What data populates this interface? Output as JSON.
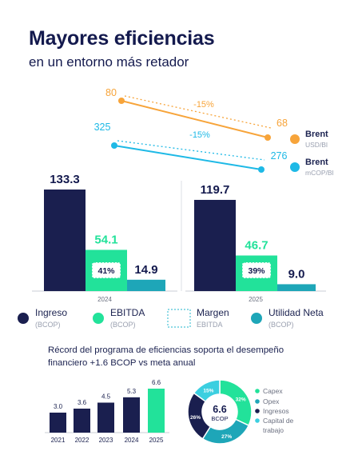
{
  "header": {
    "title": "Mayores eficiencias",
    "subtitle": "en un entorno más retador"
  },
  "colors": {
    "navy": "#1a1f4f",
    "green": "#22e29a",
    "teal": "#1ea6b8",
    "orange": "#f7a43a",
    "cyan": "#1eb9e6"
  },
  "chart_data": [
    {
      "type": "line",
      "series": [
        {
          "name": "Brent",
          "unit": "USD/Bl",
          "x": [
            "2024",
            "2025"
          ],
          "values": [
            80,
            68
          ],
          "change_label": "-15%"
        },
        {
          "name": "Brent",
          "unit": "mCOP/Bl",
          "x": [
            "2024",
            "2025"
          ],
          "values": [
            325,
            276
          ],
          "change_label": "-15%"
        }
      ]
    },
    {
      "type": "bar",
      "categories": [
        "2024",
        "2025"
      ],
      "series": [
        {
          "name": "Ingreso",
          "unit": "(BCOP)",
          "values": [
            133.3,
            119.7
          ]
        },
        {
          "name": "EBITDA",
          "unit": "(BCOP)",
          "values": [
            54.1,
            46.7
          ]
        },
        {
          "name": "Utilidad Neta",
          "unit": "(BCOP)",
          "values": [
            14.9,
            9.0
          ]
        }
      ],
      "value_labels": {
        "Ingreso": [
          "133.3",
          "119.7"
        ],
        "EBITDA": [
          "54.1",
          "46.7"
        ],
        "Utilidad Neta": [
          "14.9",
          "9.0"
        ]
      },
      "margin": {
        "name": "Margen",
        "unit": "EBITDA",
        "values": [
          "41%",
          "39%"
        ]
      }
    },
    {
      "type": "bar",
      "title": "Récord del programa de eficiencias soporta el desempeño financiero +1.6 BCOP vs meta anual",
      "categories": [
        "2021",
        "2022",
        "2023",
        "2024",
        "2025"
      ],
      "values": [
        3.0,
        3.6,
        4.5,
        5.3,
        6.6
      ],
      "value_labels": [
        "3.0",
        "3.6",
        "4.5",
        "5.3",
        "6.6"
      ]
    },
    {
      "type": "pie",
      "center_value": "6.6",
      "center_unit": "BCOP",
      "labels": [
        "Capex",
        "Opex",
        "Ingresos",
        "Capital de trabajo"
      ],
      "values": [
        32,
        27,
        26,
        15
      ],
      "value_labels": [
        "32%",
        "27%",
        "26%",
        "15%"
      ]
    }
  ],
  "brent_legend": [
    {
      "name": "Brent",
      "unit": "USD/Bl"
    },
    {
      "name": "Brent",
      "unit": "mCOP/Bl"
    }
  ],
  "pie_legend": [
    "Capex",
    "Opex",
    "Ingresos",
    "Capital de",
    "trabajo"
  ]
}
